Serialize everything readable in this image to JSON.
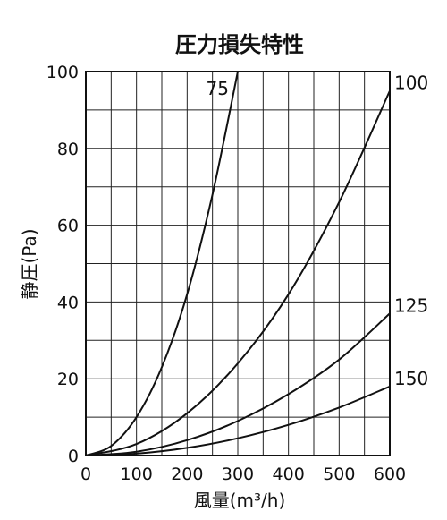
{
  "chart_data": {
    "type": "line",
    "title": "圧力損失特性",
    "xlabel": "風量(m³/h)",
    "ylabel": "静圧(Pa)",
    "xlim": [
      0,
      600
    ],
    "ylim": [
      0,
      100
    ],
    "x_ticks": [
      0,
      100,
      200,
      300,
      400,
      500,
      600
    ],
    "y_ticks": [
      0,
      20,
      40,
      60,
      80,
      100
    ],
    "x_minor_step": 50,
    "y_minor_step": 10,
    "grid": true,
    "series": [
      {
        "name": "75",
        "x": [
          0,
          50,
          100,
          150,
          200,
          250,
          300
        ],
        "y": [
          0,
          2.5,
          10,
          23,
          42,
          68,
          100
        ]
      },
      {
        "name": "100",
        "x": [
          0,
          100,
          200,
          300,
          400,
          500,
          600
        ],
        "y": [
          0,
          3,
          11,
          24,
          42,
          66,
          95
        ]
      },
      {
        "name": "125",
        "x": [
          0,
          100,
          200,
          300,
          400,
          500,
          600
        ],
        "y": [
          0,
          1,
          4,
          9,
          16,
          25,
          37
        ]
      },
      {
        "name": "150",
        "x": [
          0,
          100,
          200,
          300,
          400,
          500,
          600
        ],
        "y": [
          0,
          0.5,
          2,
          4.5,
          8,
          12.5,
          18
        ]
      }
    ]
  }
}
